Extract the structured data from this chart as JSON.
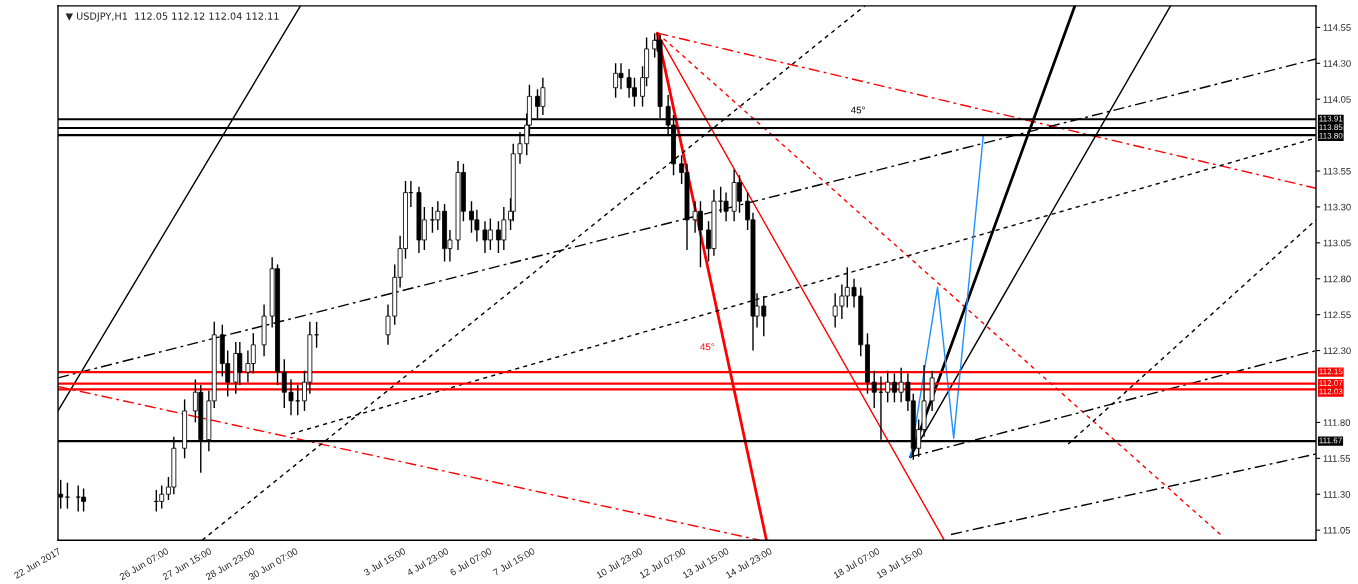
{
  "chart_data": {
    "type": "candlestick",
    "title": "▼ USDJPY,H1  112.05 112.12 112.04 112.11",
    "color": "#000000",
    "x": [
      "2017-06-23T01:00",
      "2017-06-23T06:00",
      "2017-06-23T14:00",
      "2017-06-23T18:00",
      "2017-06-26T00:00",
      "2017-06-26T04:00",
      "2017-06-26T09:00",
      "2017-06-26T13:00",
      "2017-06-26T21:00",
      "2017-06-27T05:00",
      "2017-06-27T09:00",
      "2017-06-27T15:00",
      "2017-06-27T19:00",
      "2017-06-28T01:00",
      "2017-06-28T05:00",
      "2017-06-28T11:00",
      "2017-06-28T14:00",
      "2017-06-28T20:00",
      "2017-06-29T00:00",
      "2017-06-29T08:00",
      "2017-06-29T14:00",
      "2017-06-29T18:00",
      "2017-06-29T23:00",
      "2017-06-30T04:00",
      "2017-06-30T09:00",
      "2017-06-30T14:00",
      "2017-06-30T18:00",
      "2017-06-30T23:00",
      "2017-07-03T04:00",
      "2017-07-03T09:00",
      "2017-07-03T13:00",
      "2017-07-03T17:00",
      "2017-07-03T21:00",
      "2017-07-04T03:00",
      "2017-07-04T07:00",
      "2017-07-04T13:00",
      "2017-07-04T17:00",
      "2017-07-04T22:00",
      "2017-07-05T02:00",
      "2017-07-05T08:00",
      "2017-07-05T12:00",
      "2017-07-05T18:00",
      "2017-07-05T22:00",
      "2017-07-06T04:00",
      "2017-07-06T08:00",
      "2017-07-06T14:00",
      "2017-07-06T18:00",
      "2017-07-06T23:00",
      "2017-07-07T01:00",
      "2017-07-07T06:00",
      "2017-07-07T11:00",
      "2017-07-07T13:00",
      "2017-07-07T19:00",
      "2017-07-07T23:00",
      "2017-07-10T05:00",
      "2017-07-10T09:00",
      "2017-07-10T15:00",
      "2017-07-10T19:00",
      "2017-07-11T01:00",
      "2017-07-11T04:00",
      "2017-07-11T10:00",
      "2017-07-11T12:00",
      "2017-07-11T14:00",
      "2017-07-11T20:00",
      "2017-07-12T00:00",
      "2017-07-12T06:00",
      "2017-07-12T10:00",
      "2017-07-12T16:00",
      "2017-07-12T20:00",
      "2017-07-13T02:00",
      "2017-07-13T06:00",
      "2017-07-13T11:00",
      "2017-07-13T15:00",
      "2017-07-13T21:00",
      "2017-07-14T01:00",
      "2017-07-14T07:00",
      "2017-07-14T11:00",
      "2017-07-14T14:00",
      "2017-07-14T19:00",
      "2017-07-17T00:00",
      "2017-07-17T05:00",
      "2017-07-17T09:00",
      "2017-07-17T14:00",
      "2017-07-17T19:00",
      "2017-07-18T00:00",
      "2017-07-18T05:00",
      "2017-07-18T10:00",
      "2017-07-18T15:00",
      "2017-07-18T20:00",
      "2017-07-19T01:00",
      "2017-07-19T06:00",
      "2017-07-19T10:00",
      "2017-07-19T14:00",
      "2017-07-19T18:00",
      "2017-07-20T00:00"
    ],
    "ohlc": [
      [
        111.3,
        111.4,
        111.2,
        111.28
      ],
      [
        111.28,
        111.38,
        111.2,
        111.28
      ],
      [
        111.28,
        111.36,
        111.18,
        111.28
      ],
      [
        111.28,
        111.34,
        111.18,
        111.25
      ],
      [
        111.25,
        111.33,
        111.18,
        111.25
      ],
      [
        111.25,
        111.36,
        111.2,
        111.3
      ],
      [
        111.3,
        111.42,
        111.26,
        111.35
      ],
      [
        111.35,
        111.7,
        111.3,
        111.62
      ],
      [
        111.62,
        111.96,
        111.55,
        111.88
      ],
      [
        111.88,
        112.1,
        111.8,
        112.01
      ],
      [
        112.01,
        112.06,
        111.45,
        111.68
      ],
      [
        111.68,
        112.02,
        111.6,
        111.95
      ],
      [
        111.95,
        112.5,
        111.9,
        112.41
      ],
      [
        112.41,
        112.48,
        112.12,
        112.21
      ],
      [
        112.21,
        112.3,
        111.98,
        112.08
      ],
      [
        112.08,
        112.36,
        112.0,
        112.28
      ],
      [
        112.28,
        112.36,
        112.06,
        112.15
      ],
      [
        112.15,
        112.3,
        112.08,
        112.21
      ],
      [
        112.21,
        112.42,
        112.14,
        112.34
      ],
      [
        112.34,
        112.62,
        112.26,
        112.54
      ],
      [
        112.54,
        112.95,
        112.46,
        112.87
      ],
      [
        112.87,
        112.9,
        112.06,
        112.15
      ],
      [
        112.15,
        112.24,
        111.9,
        112.01
      ],
      [
        112.01,
        112.1,
        111.85,
        111.95
      ],
      [
        111.95,
        112.06,
        111.85,
        111.95
      ],
      [
        111.95,
        112.16,
        111.88,
        112.08
      ],
      [
        112.08,
        112.5,
        112.0,
        112.41
      ],
      [
        112.41,
        112.5,
        112.32,
        112.41
      ],
      [
        112.41,
        112.62,
        112.34,
        112.54
      ],
      [
        112.54,
        112.9,
        112.48,
        112.81
      ],
      [
        112.81,
        113.1,
        112.74,
        113.01
      ],
      [
        113.01,
        113.48,
        112.94,
        113.4
      ],
      [
        113.4,
        113.48,
        113.3,
        113.4
      ],
      [
        113.4,
        113.44,
        112.98,
        113.07
      ],
      [
        113.07,
        113.3,
        113.0,
        113.21
      ],
      [
        113.21,
        113.3,
        113.12,
        113.21
      ],
      [
        113.21,
        113.34,
        113.14,
        113.27
      ],
      [
        113.27,
        113.32,
        112.92,
        113.01
      ],
      [
        113.01,
        113.14,
        112.92,
        113.07
      ],
      [
        113.07,
        113.62,
        113.0,
        113.54
      ],
      [
        113.54,
        113.6,
        113.2,
        113.27
      ],
      [
        113.27,
        113.34,
        113.12,
        113.21
      ],
      [
        113.21,
        113.28,
        113.06,
        113.14
      ],
      [
        113.14,
        113.2,
        112.98,
        113.07
      ],
      [
        113.07,
        113.22,
        113.0,
        113.14
      ],
      [
        113.14,
        113.2,
        112.98,
        113.07
      ],
      [
        113.07,
        113.3,
        113.0,
        113.21
      ],
      [
        113.21,
        113.36,
        113.14,
        113.27
      ],
      [
        113.27,
        113.74,
        113.2,
        113.67
      ],
      [
        113.67,
        113.82,
        113.6,
        113.74
      ],
      [
        113.74,
        113.95,
        113.66,
        113.87
      ],
      [
        113.87,
        114.15,
        113.8,
        114.07
      ],
      [
        114.07,
        114.12,
        113.92,
        114.0
      ],
      [
        114.0,
        114.2,
        113.94,
        114.13
      ],
      [
        114.13,
        114.3,
        114.06,
        114.23
      ],
      [
        114.23,
        114.3,
        114.12,
        114.2
      ],
      [
        114.2,
        114.26,
        114.06,
        114.13
      ],
      [
        114.13,
        114.2,
        114.0,
        114.07
      ],
      [
        114.07,
        114.28,
        114.0,
        114.2
      ],
      [
        114.2,
        114.48,
        114.14,
        114.4
      ],
      [
        114.4,
        114.51,
        114.34,
        114.46
      ],
      [
        114.46,
        114.51,
        114.38,
        114.46
      ],
      [
        114.46,
        114.5,
        113.92,
        114.0
      ],
      [
        114.0,
        114.08,
        113.8,
        113.87
      ],
      [
        113.87,
        113.94,
        113.52,
        113.6
      ],
      [
        113.6,
        113.66,
        113.46,
        113.54
      ],
      [
        113.54,
        113.6,
        113.0,
        113.21
      ],
      [
        113.21,
        113.34,
        113.12,
        113.27
      ],
      [
        113.27,
        113.34,
        112.88,
        113.14
      ],
      [
        113.14,
        113.2,
        112.92,
        113.01
      ],
      [
        113.01,
        113.42,
        112.96,
        113.34
      ],
      [
        113.34,
        113.44,
        113.26,
        113.34
      ],
      [
        113.34,
        113.4,
        113.2,
        113.27
      ],
      [
        113.27,
        113.56,
        113.2,
        113.47
      ],
      [
        113.47,
        113.52,
        113.26,
        113.34
      ],
      [
        113.34,
        113.4,
        113.14,
        113.21
      ],
      [
        113.21,
        113.26,
        112.3,
        112.54
      ],
      [
        112.54,
        112.7,
        112.46,
        112.61
      ],
      [
        112.61,
        112.68,
        112.4,
        112.54
      ],
      [
        112.54,
        112.7,
        112.46,
        112.61
      ],
      [
        112.61,
        112.76,
        112.52,
        112.68
      ],
      [
        112.68,
        112.88,
        112.6,
        112.74
      ],
      [
        112.74,
        112.8,
        112.6,
        112.68
      ],
      [
        112.68,
        112.74,
        112.26,
        112.34
      ],
      [
        112.34,
        112.42,
        112.0,
        112.08
      ],
      [
        112.08,
        112.16,
        111.9,
        112.01
      ],
      [
        112.01,
        112.12,
        111.68,
        112.01
      ],
      [
        112.01,
        112.16,
        111.94,
        112.08
      ],
      [
        112.08,
        112.14,
        111.94,
        112.01
      ],
      [
        112.01,
        112.18,
        111.94,
        112.08
      ],
      [
        112.08,
        112.14,
        111.88,
        111.95
      ],
      [
        111.95,
        112.0,
        111.54,
        111.62
      ],
      [
        111.62,
        111.82,
        111.56,
        111.75
      ],
      [
        111.75,
        112.2,
        111.7,
        111.95
      ],
      [
        111.95,
        112.16,
        111.88,
        112.11
      ]
    ],
    "series": [
      {
        "type": "line",
        "color": "#ff0000",
        "line_style": "solid",
        "x": [
          "2017-07-11T12:00",
          "2017-07-14T21:00"
        ],
        "values": [
          114.51,
          110.98
        ]
      },
      {
        "type": "line",
        "color": "#ff0000",
        "line_style": "solid",
        "x": [
          "2017-07-11T12:00",
          "2017-07-20T09:00"
        ],
        "values": [
          114.51,
          110.98
        ]
      },
      {
        "type": "line",
        "color": "#ff0000",
        "line_style": "dotted",
        "x": [
          "2017-07-11T12:00",
          "2017-07-28T22:00"
        ],
        "values": [
          114.51,
          111.02
        ]
      },
      {
        "type": "line",
        "color": "#ff0000",
        "line_style": "dashed",
        "x": [
          "2017-07-11T12:00",
          "2017-07-31T21:00"
        ],
        "values": [
          114.51,
          113.43
        ]
      },
      {
        "type": "line",
        "color": "#ff0000",
        "line_style": "dashed",
        "x": [
          "2017-06-22T23:00",
          "2017-07-14T16:00"
        ],
        "values": [
          112.05,
          110.98
        ]
      },
      {
        "type": "line",
        "color": "#000000",
        "line_style": "solid",
        "x": [
          "2017-07-19T08:00",
          "2017-07-24T10:00"
        ],
        "values": [
          111.56,
          114.7
        ]
      },
      {
        "type": "line",
        "color": "#000000",
        "line_style": "solid",
        "x": [
          "2017-07-19T08:00",
          "2017-07-27T09:00"
        ],
        "values": [
          111.56,
          114.7
        ]
      },
      {
        "type": "line",
        "color": "#000000",
        "line_style": "solid",
        "x": [
          "2017-06-22T23:00",
          "2017-06-30T11:00"
        ],
        "values": [
          111.88,
          114.7
        ]
      },
      {
        "type": "line",
        "color": "#000000",
        "line_style": "dotted",
        "x": [
          "2017-06-27T10:00",
          "2017-07-17T22:00"
        ],
        "values": [
          110.98,
          114.7
        ]
      },
      {
        "type": "line",
        "color": "#000000",
        "line_style": "dotted",
        "x": [
          "2017-06-30T04:00",
          "2017-07-31T21:00"
        ],
        "values": [
          111.72,
          113.78
        ]
      },
      {
        "type": "line",
        "color": "#000000",
        "line_style": "dashed",
        "x": [
          "2017-06-22T23:00",
          "2017-07-31T21:00"
        ],
        "values": [
          112.11,
          114.33
        ]
      },
      {
        "type": "line",
        "color": "#000000",
        "line_style": "dashed",
        "x": [
          "2017-07-19T08:00",
          "2017-07-31T21:00"
        ],
        "values": [
          111.56,
          112.3
        ]
      },
      {
        "type": "line",
        "color": "#000000",
        "line_style": "dashed",
        "x": [
          "2017-07-20T14:00",
          "2017-07-31T21:00"
        ],
        "values": [
          111.02,
          111.58
        ]
      },
      {
        "type": "line",
        "color": "#000000",
        "line_style": "dotted",
        "x": [
          "2017-07-24T05:00",
          "2017-07-31T21:00"
        ],
        "values": [
          111.65,
          113.21
        ]
      },
      {
        "type": "line",
        "color": "#1e90ff",
        "line_style": "solid",
        "x": [
          "2017-07-19T08:00",
          "2017-07-20T04:00",
          "2017-07-20T16:00",
          "2017-07-21T14:00"
        ],
        "values": [
          111.56,
          112.74,
          111.69,
          113.8
        ]
      }
    ],
    "ref_lines": [
      {
        "axis": "y",
        "value": 113.91,
        "label": "113.91",
        "color": "#000000"
      },
      {
        "axis": "y",
        "value": 113.85,
        "label": "113.85",
        "color": "#000000"
      },
      {
        "axis": "y",
        "value": 113.8,
        "label": "113.80",
        "color": "#000000"
      },
      {
        "axis": "y",
        "value": 112.15,
        "label": "112.15",
        "color": "#ff0000"
      },
      {
        "axis": "y",
        "value": 112.07,
        "label": "112.07",
        "color": "#ff0000"
      },
      {
        "axis": "y",
        "value": 112.03,
        "label": "112.03",
        "color": "#ff0000"
      },
      {
        "axis": "y",
        "value": 111.67,
        "label": "111.67",
        "color": "#000000"
      }
    ],
    "annotations": [
      "45°",
      "45°"
    ],
    "xlim": [
      "2017-06-22T23:00",
      "2017-07-31T21:00"
    ],
    "ylim": [
      110.98,
      114.7
    ],
    "xticks": [
      {
        "value": "2017-06-22T23:00",
        "label": "22 Jun 2017"
      },
      {
        "value": "2017-06-26T07:00",
        "label": "26 Jun 07:00"
      },
      {
        "value": "2017-06-27T15:00",
        "label": "27 Jun 15:00"
      },
      {
        "value": "2017-06-28T23:00",
        "label": "28 Jun 23:00"
      },
      {
        "value": "2017-06-30T07:00",
        "label": "30 Jun 07:00"
      },
      {
        "value": "2017-07-03T15:00",
        "label": "3 Jul 15:00"
      },
      {
        "value": "2017-07-04T23:00",
        "label": "4 Jul 23:00"
      },
      {
        "value": "2017-07-06T07:00",
        "label": "6 Jul 07:00"
      },
      {
        "value": "2017-07-07T15:00",
        "label": "7 Jul 15:00"
      },
      {
        "value": "2017-07-10T23:00",
        "label": "10 Jul 23:00"
      },
      {
        "value": "2017-07-12T07:00",
        "label": "12 Jul 07:00"
      },
      {
        "value": "2017-07-13T15:00",
        "label": "13 Jul 15:00"
      },
      {
        "value": "2017-07-14T23:00",
        "label": "14 Jul 23:00"
      },
      {
        "value": "2017-07-18T07:00",
        "label": "18 Jul 07:00"
      },
      {
        "value": "2017-07-19T15:00",
        "label": "19 Jul 15:00"
      }
    ],
    "yticks": [
      111.05,
      {
        "value": 111.3,
        "label": "111.30"
      },
      111.55,
      {
        "value": 111.8,
        "label": "111.80"
      },
      {
        "value": 112.3,
        "label": "112.30"
      },
      112.55,
      {
        "value": 112.8,
        "label": "112.80"
      },
      113.05,
      {
        "value": 113.3,
        "label": "113.30"
      },
      113.55,
      114.05,
      {
        "value": 114.3,
        "label": "114.30"
      },
      114.55
    ],
    "grid": false,
    "legend": false
  }
}
